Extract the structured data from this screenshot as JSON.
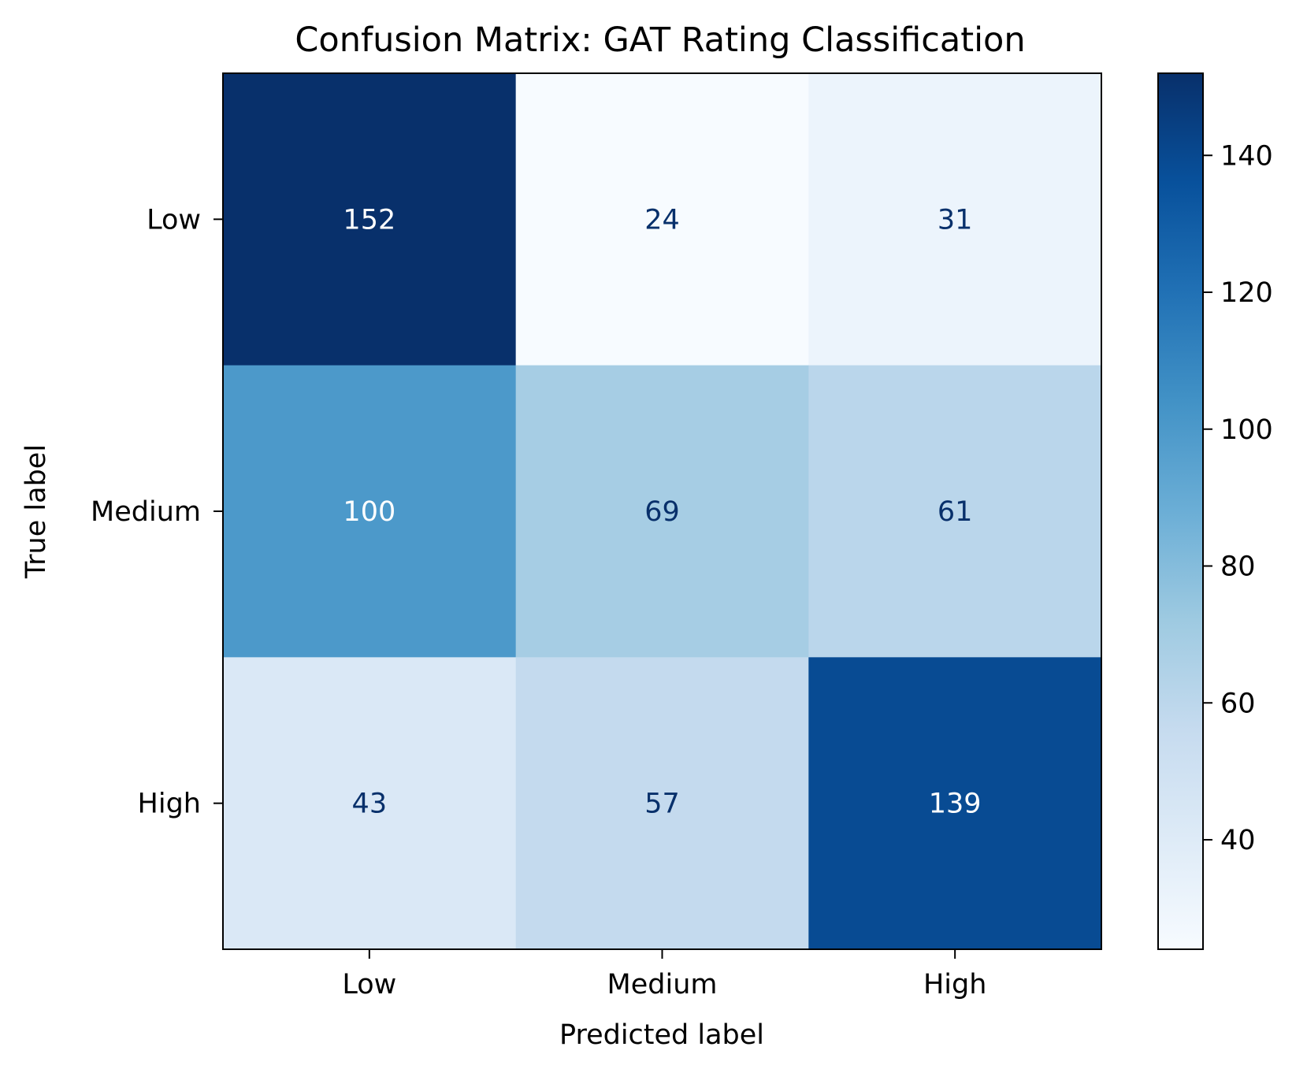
{
  "chart_data": {
    "type": "heatmap",
    "title": "Confusion Matrix: GAT Rating Classification",
    "xlabel": "Predicted label",
    "ylabel": "True label",
    "x_categories": [
      "Low",
      "Medium",
      "High"
    ],
    "y_categories": [
      "Low",
      "Medium",
      "High"
    ],
    "matrix": [
      [
        152,
        24,
        31
      ],
      [
        100,
        69,
        61
      ],
      [
        43,
        57,
        139
      ]
    ],
    "colormap": "Blues",
    "color_range": [
      24,
      152
    ],
    "colorbar_ticks": [
      40,
      60,
      80,
      100,
      120,
      140
    ],
    "colors": {
      "dark_text": "#08306b",
      "light_text": "#ffffff"
    }
  }
}
